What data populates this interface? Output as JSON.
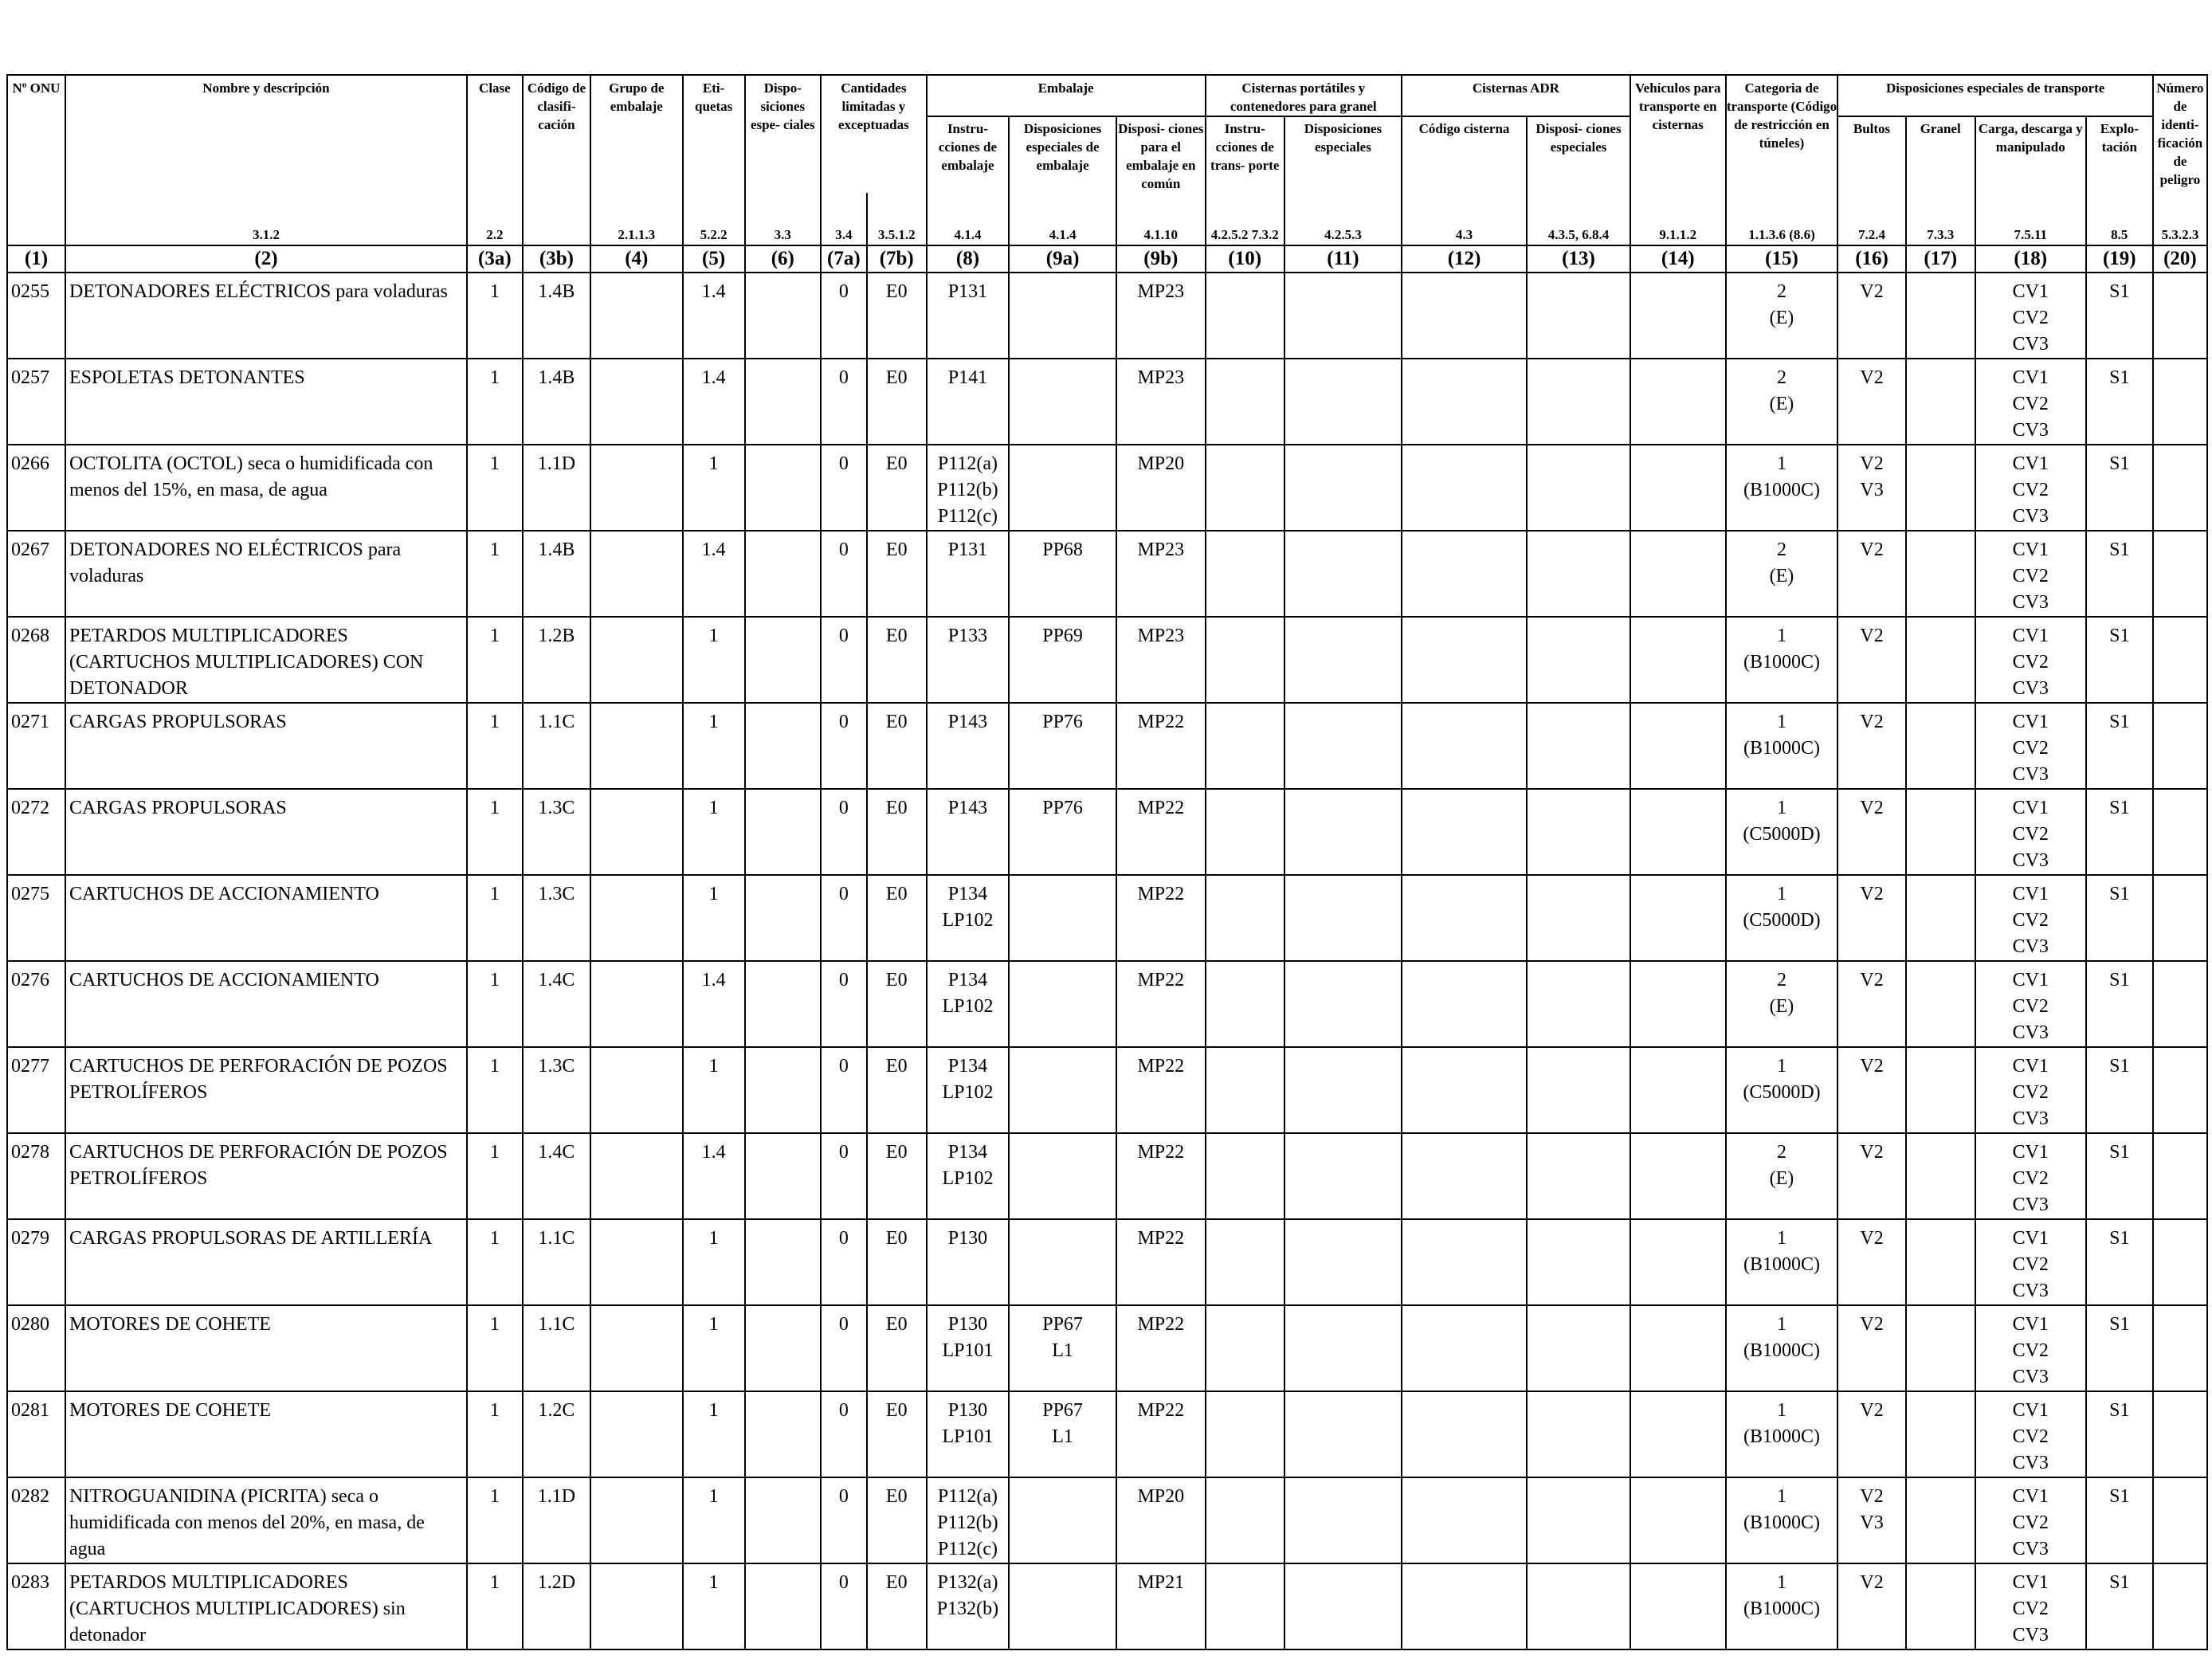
{
  "headers": {
    "onu": "Nº ONU",
    "name": "Nombre y descripción",
    "clase": "Clase",
    "codigo": "Código de clasifi- cación",
    "grupo": "Grupo de embalaje",
    "etiquetas": "Eti- quetas",
    "disp_esp": "Dispo- siciones espe- ciales",
    "cantidades": "Cantidades limitadas y exceptuadas",
    "embalaje": "Embalaje",
    "emb_instr": "Instru- cciones de embalaje",
    "emb_disp": "Disposiciones especiales de embalaje",
    "emb_comun": "Disposi- ciones para el embalaje en común",
    "cisternas_port": "Cisternas portátiles y contenedores para granel",
    "cp_instr": "Instru- cciones de trans- porte",
    "cp_disp": "Disposiciones especiales",
    "cisternas_adr": "Cisternas ADR",
    "adr_codigo": "Código cisterna",
    "adr_disp": "Disposi- ciones especiales",
    "vehiculos": "Vehículos para transporte en cisternas",
    "categoria": "Categoria de transporte (Código de restricción en túneles)",
    "disp_transporte": "Disposiciones especiales de transporte",
    "bultos": "Bultos",
    "granel": "Granel",
    "carga": "Carga, descarga y manipulado",
    "explotacion": "Explo- tación",
    "numero_peligro": "Número de identi- ficación de peligro"
  },
  "refs": {
    "name": "3.1.2",
    "clase": "2.2",
    "codigo": "",
    "grupo": "2.1.1.3",
    "etiquetas": "5.2.2",
    "disp_esp": "3.3",
    "lim": "3.4",
    "exc": "3.5.1.2",
    "emb_instr": "4.1.4",
    "emb_disp": "4.1.4",
    "emb_comun": "4.1.10",
    "cp_instr": "4.2.5.2 7.3.2",
    "cp_disp": "4.2.5.3",
    "adr_codigo": "4.3",
    "adr_disp": "4.3.5, 6.8.4",
    "vehiculos": "9.1.1.2",
    "categoria": "1.1.3.6 (8.6)",
    "bultos": "7.2.4",
    "granel": "7.3.3",
    "carga": "7.5.11",
    "explotacion": "8.5",
    "numero_peligro": "5.3.2.3"
  },
  "column_numbers": [
    "(1)",
    "(2)",
    "(3a)",
    "(3b)",
    "(4)",
    "(5)",
    "(6)",
    "(7a)",
    "(7b)",
    "(8)",
    "(9a)",
    "(9b)",
    "(10)",
    "(11)",
    "(12)",
    "(13)",
    "(14)",
    "(15)",
    "(16)",
    "(17)",
    "(18)",
    "(19)",
    "(20)"
  ],
  "rows": [
    {
      "onu": "0255",
      "name": "DETONADORES ELÉCTRICOS para voladuras",
      "clase": "1",
      "codigo": "1.4B",
      "grupo": "",
      "etiquetas": "1.4",
      "disp_esp": "",
      "lim": "0",
      "exc": "E0",
      "emb_instr": [
        "P131"
      ],
      "emb_disp": [],
      "emb_comun": "MP23",
      "cp_instr": "",
      "cp_disp": "",
      "adr_codigo": "",
      "adr_disp": "",
      "vehiculos": "",
      "categoria": [
        "2",
        "(E)"
      ],
      "bultos": [
        "V2"
      ],
      "granel": "",
      "carga": [
        "CV1",
        "CV2",
        "CV3"
      ],
      "explotacion": "S1",
      "numero_peligro": ""
    },
    {
      "onu": "0257",
      "name": "ESPOLETAS DETONANTES",
      "clase": "1",
      "codigo": "1.4B",
      "grupo": "",
      "etiquetas": "1.4",
      "disp_esp": "",
      "lim": "0",
      "exc": "E0",
      "emb_instr": [
        "P141"
      ],
      "emb_disp": [],
      "emb_comun": "MP23",
      "cp_instr": "",
      "cp_disp": "",
      "adr_codigo": "",
      "adr_disp": "",
      "vehiculos": "",
      "categoria": [
        "2",
        "(E)"
      ],
      "bultos": [
        "V2"
      ],
      "granel": "",
      "carga": [
        "CV1",
        "CV2",
        "CV3"
      ],
      "explotacion": "S1",
      "numero_peligro": ""
    },
    {
      "onu": "0266",
      "name": "OCTOLITA (OCTOL) seca o humidificada con menos del 15%, en masa, de agua",
      "clase": "1",
      "codigo": "1.1D",
      "grupo": "",
      "etiquetas": "1",
      "disp_esp": "",
      "lim": "0",
      "exc": "E0",
      "emb_instr": [
        "P112(a)",
        "P112(b)",
        "P112(c)"
      ],
      "emb_disp": [],
      "emb_comun": "MP20",
      "cp_instr": "",
      "cp_disp": "",
      "adr_codigo": "",
      "adr_disp": "",
      "vehiculos": "",
      "categoria": [
        "1",
        "(B1000C)"
      ],
      "bultos": [
        "V2",
        "V3"
      ],
      "granel": "",
      "carga": [
        "CV1",
        "CV2",
        "CV3"
      ],
      "explotacion": "S1",
      "numero_peligro": ""
    },
    {
      "onu": "0267",
      "name": "DETONADORES NO ELÉCTRICOS para voladuras",
      "clase": "1",
      "codigo": "1.4B",
      "grupo": "",
      "etiquetas": "1.4",
      "disp_esp": "",
      "lim": "0",
      "exc": "E0",
      "emb_instr": [
        "P131"
      ],
      "emb_disp": [
        "PP68"
      ],
      "emb_comun": "MP23",
      "cp_instr": "",
      "cp_disp": "",
      "adr_codigo": "",
      "adr_disp": "",
      "vehiculos": "",
      "categoria": [
        "2",
        "(E)"
      ],
      "bultos": [
        "V2"
      ],
      "granel": "",
      "carga": [
        "CV1",
        "CV2",
        "CV3"
      ],
      "explotacion": "S1",
      "numero_peligro": ""
    },
    {
      "onu": "0268",
      "name": "PETARDOS MULTIPLICADORES (CARTUCHOS MULTIPLICADORES) CON DETONADOR",
      "clase": "1",
      "codigo": "1.2B",
      "grupo": "",
      "etiquetas": "1",
      "disp_esp": "",
      "lim": "0",
      "exc": "E0",
      "emb_instr": [
        "P133"
      ],
      "emb_disp": [
        "PP69"
      ],
      "emb_comun": "MP23",
      "cp_instr": "",
      "cp_disp": "",
      "adr_codigo": "",
      "adr_disp": "",
      "vehiculos": "",
      "categoria": [
        "1",
        "(B1000C)"
      ],
      "bultos": [
        "V2"
      ],
      "granel": "",
      "carga": [
        "CV1",
        "CV2",
        "CV3"
      ],
      "explotacion": "S1",
      "numero_peligro": ""
    },
    {
      "onu": "0271",
      "name": "CARGAS PROPULSORAS",
      "clase": "1",
      "codigo": "1.1C",
      "grupo": "",
      "etiquetas": "1",
      "disp_esp": "",
      "lim": "0",
      "exc": "E0",
      "emb_instr": [
        "P143"
      ],
      "emb_disp": [
        "PP76"
      ],
      "emb_comun": "MP22",
      "cp_instr": "",
      "cp_disp": "",
      "adr_codigo": "",
      "adr_disp": "",
      "vehiculos": "",
      "categoria": [
        "1",
        "(B1000C)"
      ],
      "bultos": [
        "V2"
      ],
      "granel": "",
      "carga": [
        "CV1",
        "CV2",
        "CV3"
      ],
      "explotacion": "S1",
      "numero_peligro": ""
    },
    {
      "onu": "0272",
      "name": "CARGAS PROPULSORAS",
      "clase": "1",
      "codigo": "1.3C",
      "grupo": "",
      "etiquetas": "1",
      "disp_esp": "",
      "lim": "0",
      "exc": "E0",
      "emb_instr": [
        "P143"
      ],
      "emb_disp": [
        "PP76"
      ],
      "emb_comun": "MP22",
      "cp_instr": "",
      "cp_disp": "",
      "adr_codigo": "",
      "adr_disp": "",
      "vehiculos": "",
      "categoria": [
        "1",
        "(C5000D)"
      ],
      "bultos": [
        "V2"
      ],
      "granel": "",
      "carga": [
        "CV1",
        "CV2",
        "CV3"
      ],
      "explotacion": "S1",
      "numero_peligro": ""
    },
    {
      "onu": "0275",
      "name": "CARTUCHOS DE ACCIONAMIENTO",
      "clase": "1",
      "codigo": "1.3C",
      "grupo": "",
      "etiquetas": "1",
      "disp_esp": "",
      "lim": "0",
      "exc": "E0",
      "emb_instr": [
        "P134",
        "LP102"
      ],
      "emb_disp": [],
      "emb_comun": "MP22",
      "cp_instr": "",
      "cp_disp": "",
      "adr_codigo": "",
      "adr_disp": "",
      "vehiculos": "",
      "categoria": [
        "1",
        "(C5000D)"
      ],
      "bultos": [
        "V2"
      ],
      "granel": "",
      "carga": [
        "CV1",
        "CV2",
        "CV3"
      ],
      "explotacion": "S1",
      "numero_peligro": ""
    },
    {
      "onu": "0276",
      "name": "CARTUCHOS DE ACCIONAMIENTO",
      "clase": "1",
      "codigo": "1.4C",
      "grupo": "",
      "etiquetas": "1.4",
      "disp_esp": "",
      "lim": "0",
      "exc": "E0",
      "emb_instr": [
        "P134",
        "LP102"
      ],
      "emb_disp": [],
      "emb_comun": "MP22",
      "cp_instr": "",
      "cp_disp": "",
      "adr_codigo": "",
      "adr_disp": "",
      "vehiculos": "",
      "categoria": [
        "2",
        "(E)"
      ],
      "bultos": [
        "V2"
      ],
      "granel": "",
      "carga": [
        "CV1",
        "CV2",
        "CV3"
      ],
      "explotacion": "S1",
      "numero_peligro": ""
    },
    {
      "onu": "0277",
      "name": "CARTUCHOS DE PERFORACIÓN DE POZOS PETROLÍFEROS",
      "clase": "1",
      "codigo": "1.3C",
      "grupo": "",
      "etiquetas": "1",
      "disp_esp": "",
      "lim": "0",
      "exc": "E0",
      "emb_instr": [
        "P134",
        "LP102"
      ],
      "emb_disp": [],
      "emb_comun": "MP22",
      "cp_instr": "",
      "cp_disp": "",
      "adr_codigo": "",
      "adr_disp": "",
      "vehiculos": "",
      "categoria": [
        "1",
        "(C5000D)"
      ],
      "bultos": [
        "V2"
      ],
      "granel": "",
      "carga": [
        "CV1",
        "CV2",
        "CV3"
      ],
      "explotacion": "S1",
      "numero_peligro": ""
    },
    {
      "onu": "0278",
      "name": "CARTUCHOS DE PERFORACIÓN DE POZOS PETROLÍFEROS",
      "clase": "1",
      "codigo": "1.4C",
      "grupo": "",
      "etiquetas": "1.4",
      "disp_esp": "",
      "lim": "0",
      "exc": "E0",
      "emb_instr": [
        "P134",
        "LP102"
      ],
      "emb_disp": [],
      "emb_comun": "MP22",
      "cp_instr": "",
      "cp_disp": "",
      "adr_codigo": "",
      "adr_disp": "",
      "vehiculos": "",
      "categoria": [
        "2",
        "(E)"
      ],
      "bultos": [
        "V2"
      ],
      "granel": "",
      "carga": [
        "CV1",
        "CV2",
        "CV3"
      ],
      "explotacion": "S1",
      "numero_peligro": ""
    },
    {
      "onu": "0279",
      "name": "CARGAS PROPULSORAS DE ARTILLERÍA",
      "clase": "1",
      "codigo": "1.1C",
      "grupo": "",
      "etiquetas": "1",
      "disp_esp": "",
      "lim": "0",
      "exc": "E0",
      "emb_instr": [
        "P130"
      ],
      "emb_disp": [],
      "emb_comun": "MP22",
      "cp_instr": "",
      "cp_disp": "",
      "adr_codigo": "",
      "adr_disp": "",
      "vehiculos": "",
      "categoria": [
        "1",
        "(B1000C)"
      ],
      "bultos": [
        "V2"
      ],
      "granel": "",
      "carga": [
        "CV1",
        "CV2",
        "CV3"
      ],
      "explotacion": "S1",
      "numero_peligro": ""
    },
    {
      "onu": "0280",
      "name": "MOTORES DE COHETE",
      "clase": "1",
      "codigo": "1.1C",
      "grupo": "",
      "etiquetas": "1",
      "disp_esp": "",
      "lim": "0",
      "exc": "E0",
      "emb_instr": [
        "P130",
        "LP101"
      ],
      "emb_disp": [
        "PP67",
        "L1"
      ],
      "emb_comun": "MP22",
      "cp_instr": "",
      "cp_disp": "",
      "adr_codigo": "",
      "adr_disp": "",
      "vehiculos": "",
      "categoria": [
        "1",
        "(B1000C)"
      ],
      "bultos": [
        "V2"
      ],
      "granel": "",
      "carga": [
        "CV1",
        "CV2",
        "CV3"
      ],
      "explotacion": "S1",
      "numero_peligro": ""
    },
    {
      "onu": "0281",
      "name": "MOTORES DE COHETE",
      "clase": "1",
      "codigo": "1.2C",
      "grupo": "",
      "etiquetas": "1",
      "disp_esp": "",
      "lim": "0",
      "exc": "E0",
      "emb_instr": [
        "P130",
        "LP101"
      ],
      "emb_disp": [
        "PP67",
        "L1"
      ],
      "emb_comun": "MP22",
      "cp_instr": "",
      "cp_disp": "",
      "adr_codigo": "",
      "adr_disp": "",
      "vehiculos": "",
      "categoria": [
        "1",
        "(B1000C)"
      ],
      "bultos": [
        "V2"
      ],
      "granel": "",
      "carga": [
        "CV1",
        "CV2",
        "CV3"
      ],
      "explotacion": "S1",
      "numero_peligro": ""
    },
    {
      "onu": "0282",
      "name": "NITROGUANIDINA (PICRITA) seca o humidificada con menos del 20%, en masa, de agua",
      "clase": "1",
      "codigo": "1.1D",
      "grupo": "",
      "etiquetas": "1",
      "disp_esp": "",
      "lim": "0",
      "exc": "E0",
      "emb_instr": [
        "P112(a)",
        "P112(b)",
        "P112(c)"
      ],
      "emb_disp": [],
      "emb_comun": "MP20",
      "cp_instr": "",
      "cp_disp": "",
      "adr_codigo": "",
      "adr_disp": "",
      "vehiculos": "",
      "categoria": [
        "1",
        "(B1000C)"
      ],
      "bultos": [
        "V2",
        "V3"
      ],
      "granel": "",
      "carga": [
        "CV1",
        "CV2",
        "CV3"
      ],
      "explotacion": "S1",
      "numero_peligro": ""
    },
    {
      "onu": "0283",
      "name": "PETARDOS MULTIPLICADORES (CARTUCHOS MULTIPLICADORES) sin detonador",
      "clase": "1",
      "codigo": "1.2D",
      "grupo": "",
      "etiquetas": "1",
      "disp_esp": "",
      "lim": "0",
      "exc": "E0",
      "emb_instr": [
        "P132(a)",
        "P132(b)"
      ],
      "emb_disp": [],
      "emb_comun": "MP21",
      "cp_instr": "",
      "cp_disp": "",
      "adr_codigo": "",
      "adr_disp": "",
      "vehiculos": "",
      "categoria": [
        "1",
        "(B1000C)"
      ],
      "bultos": [
        "V2"
      ],
      "granel": "",
      "carga": [
        "CV1",
        "CV2",
        "CV3"
      ],
      "explotacion": "S1",
      "numero_peligro": ""
    }
  ]
}
